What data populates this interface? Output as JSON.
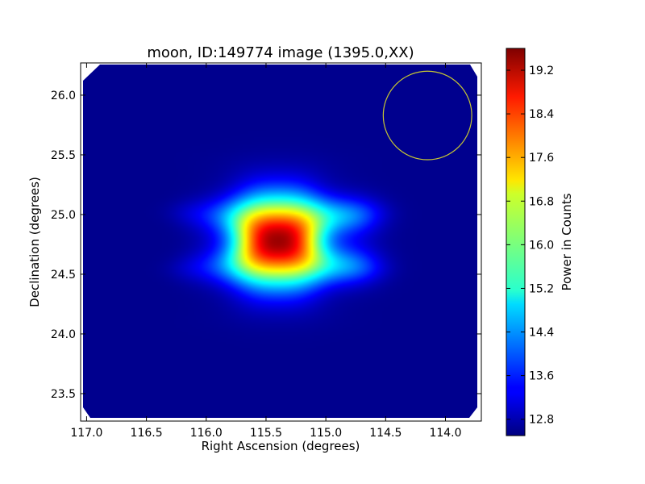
{
  "chart_data": {
    "type": "heatmap",
    "title": "moon, ID:149774 image (1395.0,XX)",
    "xlabel": "Right Ascension (degrees)",
    "ylabel": "Declination (degrees)",
    "colorbar_label": "Power in Counts",
    "colormap": "jet",
    "xlim": [
      117.05,
      113.7
    ],
    "ylim": [
      23.27,
      26.27
    ],
    "x_ticks": [
      "117.0",
      "116.5",
      "116.0",
      "115.5",
      "115.0",
      "114.5",
      "114.0"
    ],
    "y_ticks": [
      "23.5",
      "24.0",
      "24.5",
      "25.0",
      "25.5",
      "26.0"
    ],
    "colorbar_range": [
      12.5,
      19.6
    ],
    "colorbar_ticks": [
      "12.8",
      "13.6",
      "14.4",
      "15.2",
      "16.0",
      "16.8",
      "17.6",
      "18.4",
      "19.2"
    ],
    "background_value": 12.6,
    "source": {
      "ra": 115.4,
      "dec": 24.78,
      "peak": 19.4,
      "sigma_ra": 0.33,
      "sigma_dec": 0.26
    },
    "beam_circle": {
      "ra": 114.15,
      "dec": 25.83,
      "radius_deg": 0.37,
      "color": "#c8c832"
    }
  }
}
